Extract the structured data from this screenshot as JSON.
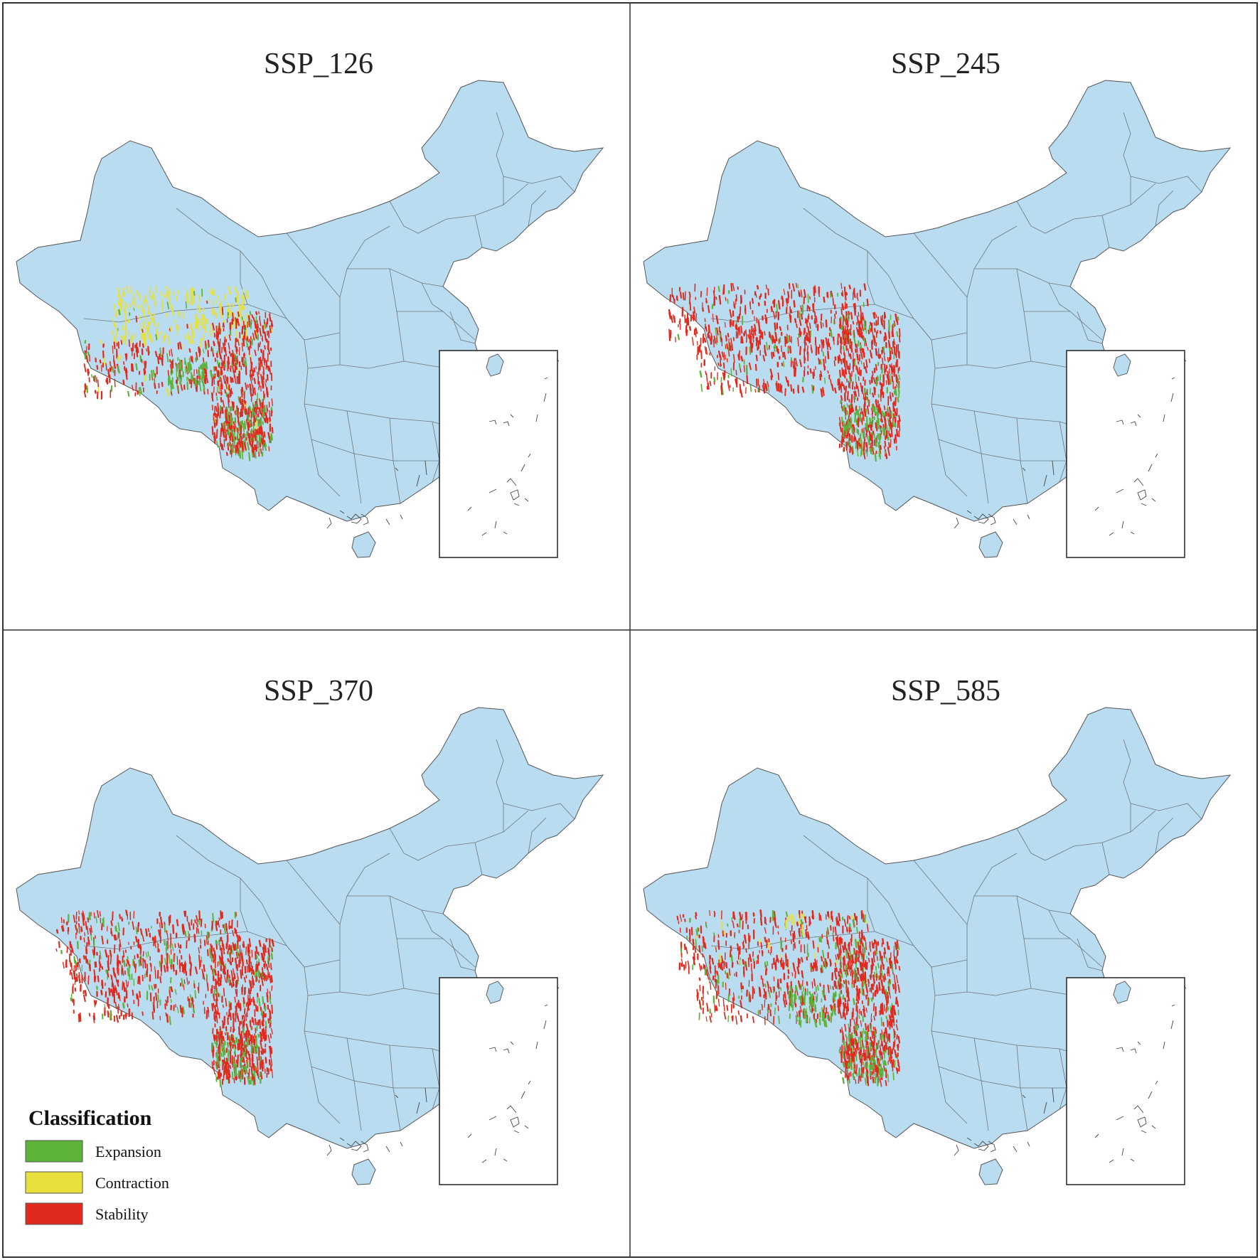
{
  "figure": {
    "panels": [
      {
        "title": "SSP_126",
        "scenario": "ssp126",
        "dominant_classes": [
          "stability",
          "contraction",
          "expansion"
        ]
      },
      {
        "title": "SSP_245",
        "scenario": "ssp245",
        "dominant_classes": [
          "stability",
          "expansion"
        ]
      },
      {
        "title": "SSP_370",
        "scenario": "ssp370",
        "dominant_classes": [
          "stability",
          "expansion"
        ]
      },
      {
        "title": "SSP_585",
        "scenario": "ssp585",
        "dominant_classes": [
          "stability",
          "expansion",
          "contraction"
        ]
      }
    ],
    "legend": {
      "title": "Classification",
      "items": [
        {
          "key": "expansion",
          "label": "Expansion",
          "color": "#5db33a"
        },
        {
          "key": "contraction",
          "label": "Contraction",
          "color": "#e8e03c"
        },
        {
          "key": "stability",
          "label": "Stability",
          "color": "#e02a1e"
        }
      ]
    },
    "colors": {
      "land": "#b9dcf0",
      "border": "#555555",
      "frame": "#333333",
      "background": "#ffffff"
    }
  }
}
